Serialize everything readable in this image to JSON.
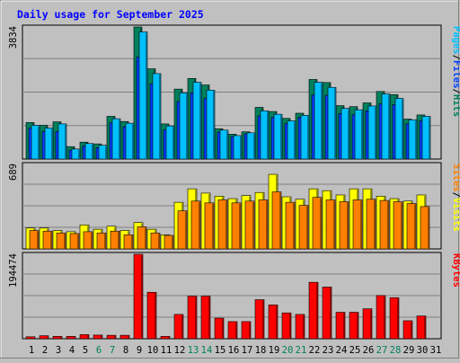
{
  "chart_data": [
    {
      "type": "bar",
      "title": "Daily usage for September 2025",
      "ymax_label": "3834",
      "ylim": [
        0,
        3834
      ],
      "categories": [
        "1",
        "2",
        "3",
        "4",
        "5",
        "6",
        "7",
        "8",
        "9",
        "10",
        "11",
        "12",
        "13",
        "14",
        "15",
        "16",
        "17",
        "18",
        "19",
        "20",
        "21",
        "22",
        "23",
        "24",
        "25",
        "26",
        "27",
        "28",
        "29",
        "30",
        "31"
      ],
      "weekend_days": [
        "6",
        "7",
        "13",
        "14",
        "20",
        "21",
        "27",
        "28"
      ],
      "legend": [
        {
          "label": "Hits",
          "color": "#00805c"
        },
        {
          "label": "/",
          "color": "#000000"
        },
        {
          "label": "Files",
          "color": "#0040ff"
        },
        {
          "label": "/",
          "color": "#000000"
        },
        {
          "label": "Pages",
          "color": "#00c0ff"
        }
      ],
      "series": [
        {
          "name": "Hits",
          "color": "#00805c",
          "values": [
            1060,
            980,
            1080,
            360,
            490,
            440,
            1240,
            1090,
            3834,
            2620,
            1020,
            2030,
            2340,
            2150,
            880,
            720,
            790,
            1500,
            1380,
            1180,
            1330,
            2310,
            2220,
            1550,
            1520,
            1630,
            1960,
            1870,
            1160,
            1280,
            0
          ]
        },
        {
          "name": "Files",
          "color": "#0040ff",
          "values": [
            900,
            800,
            800,
            260,
            380,
            330,
            1050,
            940,
            2960,
            2180,
            850,
            1670,
            1920,
            1760,
            780,
            650,
            730,
            1250,
            1210,
            1030,
            1210,
            1860,
            1850,
            1320,
            1290,
            1400,
            1600,
            1580,
            1020,
            1110,
            0
          ]
        },
        {
          "name": "Pages",
          "color": "#00c0ff",
          "values": [
            980,
            900,
            1020,
            290,
            450,
            400,
            1170,
            1040,
            3690,
            2480,
            960,
            1920,
            2230,
            2000,
            840,
            680,
            760,
            1400,
            1300,
            1110,
            1270,
            2230,
            2080,
            1470,
            1430,
            1540,
            1890,
            1760,
            1140,
            1240,
            0
          ]
        }
      ]
    },
    {
      "type": "bar",
      "ymax_label": "689",
      "ylim": [
        0,
        689
      ],
      "legend": [
        {
          "label": "Visits",
          "color": "#ffff00"
        },
        {
          "label": "/",
          "color": "#000000"
        },
        {
          "label": "Sites",
          "color": "#ff8000"
        }
      ],
      "series": [
        {
          "name": "Visits",
          "color": "#ffff00",
          "values": [
            170,
            170,
            150,
            140,
            195,
            160,
            185,
            150,
            215,
            160,
            115,
            380,
            490,
            455,
            430,
            410,
            435,
            460,
            608,
            425,
            405,
            490,
            475,
            440,
            490,
            490,
            430,
            410,
            390,
            440,
            0
          ]
        },
        {
          "name": "Sites",
          "color": "#ff8000",
          "values": [
            150,
            145,
            130,
            125,
            140,
            130,
            145,
            115,
            180,
            130,
            110,
            310,
            390,
            375,
            400,
            375,
            390,
            400,
            465,
            380,
            355,
            420,
            400,
            385,
            400,
            405,
            395,
            385,
            370,
            345,
            0
          ]
        }
      ]
    },
    {
      "type": "bar",
      "ymax_label": "194474",
      "ylim": [
        0,
        194474
      ],
      "legend": [
        {
          "label": "KBytes",
          "color": "#ff0000"
        }
      ],
      "series": [
        {
          "name": "KBytes",
          "color": "#ff0000",
          "values": [
            4500,
            7000,
            5500,
            5500,
            9500,
            8500,
            8000,
            8000,
            194474,
            107000,
            5500,
            56000,
            98000,
            98000,
            47500,
            39500,
            39500,
            90000,
            78000,
            59500,
            56000,
            130000,
            119000,
            61000,
            61000,
            69000,
            99500,
            94500,
            41500,
            52500,
            0
          ]
        }
      ]
    }
  ]
}
